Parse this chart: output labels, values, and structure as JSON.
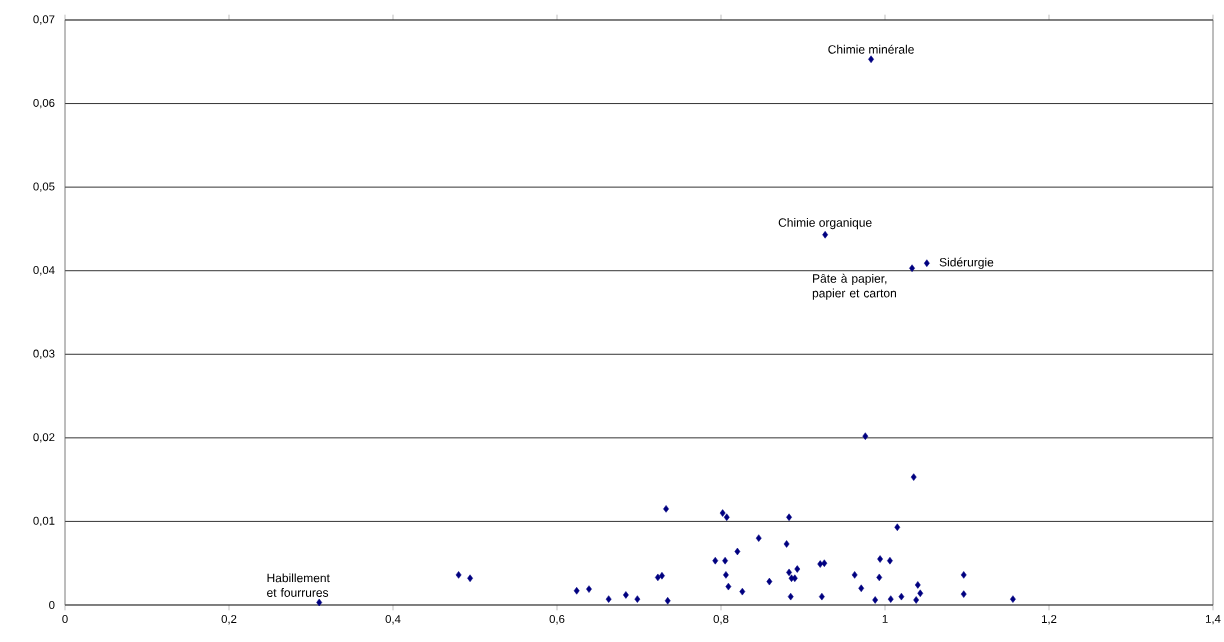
{
  "chart_data": {
    "type": "scatter",
    "color": "#000080",
    "marker": "diamond",
    "grid": "y",
    "x": [
      0.31,
      0.48,
      0.494,
      0.624,
      0.639,
      0.663,
      0.684,
      0.698,
      0.723,
      0.728,
      0.735,
      0.733,
      0.802,
      0.807,
      0.793,
      0.805,
      0.806,
      0.809,
      0.82,
      0.826,
      0.846,
      0.859,
      0.88,
      0.883,
      0.885,
      0.883,
      0.886,
      0.893,
      0.89,
      0.921,
      0.926,
      0.923,
      0.976,
      1.035,
      1.015,
      0.994,
      1.006,
      0.963,
      0.993,
      0.971,
      0.988,
      1.007,
      1.02,
      1.04,
      1.043,
      1.038,
      1.096,
      1.096,
      1.156,
      0.983,
      0.927,
      1.033,
      1.051
    ],
    "values": [
      0.0003,
      0.0036,
      0.0032,
      0.0017,
      0.0019,
      0.0007,
      0.0012,
      0.0007,
      0.0033,
      0.0035,
      0.0005,
      0.0115,
      0.011,
      0.0105,
      0.0053,
      0.0053,
      0.0036,
      0.0022,
      0.0064,
      0.0016,
      0.008,
      0.0028,
      0.0073,
      0.0105,
      0.001,
      0.0039,
      0.0032,
      0.0043,
      0.0032,
      0.0049,
      0.005,
      0.001,
      0.0202,
      0.0153,
      0.0093,
      0.0055,
      0.0053,
      0.0036,
      0.0033,
      0.002,
      0.0006,
      0.0007,
      0.001,
      0.0024,
      0.0014,
      0.0006,
      0.0036,
      0.0013,
      0.0007,
      0.0653,
      0.0443,
      0.0403,
      0.0409
    ],
    "xlim": [
      0,
      1.4
    ],
    "ylim": [
      0,
      0.07
    ],
    "xticks": [
      0,
      {
        "value": 0.2,
        "label": "0,2"
      },
      {
        "value": 0.4,
        "label": "0,4"
      },
      {
        "value": 0.6,
        "label": "0,6"
      },
      {
        "value": 0.8,
        "label": "0,8"
      },
      1,
      {
        "value": 1.2,
        "label": "1,2"
      },
      {
        "value": 1.4,
        "label": "1,4"
      }
    ],
    "yticks": [
      0,
      {
        "value": 0.01,
        "label": "0,01"
      },
      {
        "value": 0.02,
        "label": "0,02"
      },
      {
        "value": 0.03,
        "label": "0,03"
      },
      {
        "value": 0.04,
        "label": "0,04"
      },
      {
        "value": 0.05,
        "label": "0,05"
      },
      {
        "value": 0.06,
        "label": "0,06"
      },
      {
        "value": 0.07,
        "label": "0,07"
      }
    ],
    "annotations": [
      {
        "text": "Chimie minérale",
        "x": 0.983,
        "y": 0.0653
      },
      {
        "text": "Chimie organique",
        "x": 0.927,
        "y": 0.0443
      },
      {
        "text": "Sidérurgie",
        "x": 1.051,
        "y": 0.0409
      },
      {
        "text": "Pâte à papier, papier et carton",
        "x": 1.033,
        "y": 0.0403
      },
      {
        "text": "Habillement et fourrures",
        "x": 0.31,
        "y": 0.0003
      }
    ]
  }
}
